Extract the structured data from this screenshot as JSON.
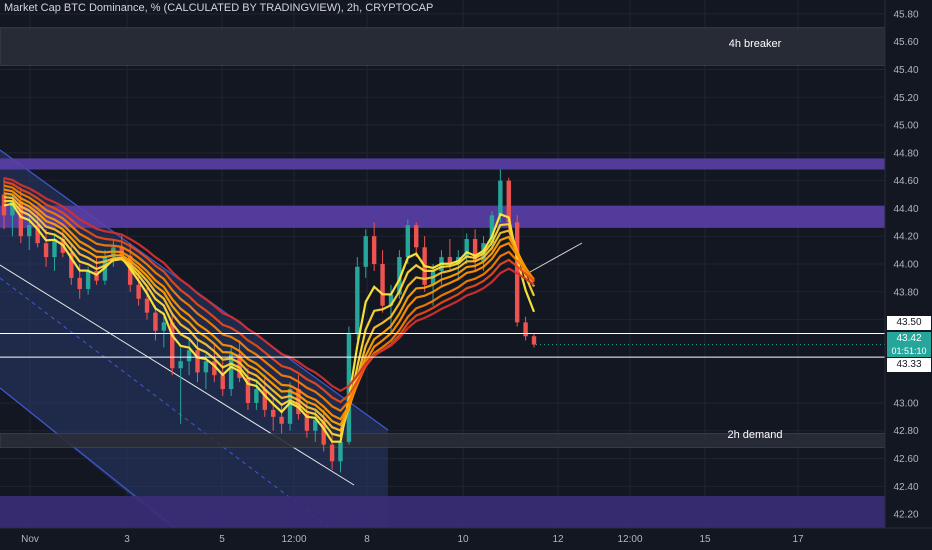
{
  "title": "Market Cap BTC Dominance, % (CALCULATED BY TRADINGVIEW), 2h, CRYPTOCAP",
  "chart_data": {
    "type": "candlestick",
    "y_ticks": [
      "45.80",
      "45.60",
      "45.40",
      "45.20",
      "45.00",
      "44.80",
      "44.60",
      "44.40",
      "44.20",
      "44.00",
      "43.80",
      "43.60",
      "43.00",
      "42.80",
      "42.60",
      "42.40",
      "42.20"
    ],
    "x_ticks": [
      {
        "label": "Nov",
        "px": 30
      },
      {
        "label": "3",
        "px": 127
      },
      {
        "label": "5",
        "px": 222
      },
      {
        "label": "12:00",
        "px": 294
      },
      {
        "label": "8",
        "px": 367
      },
      {
        "label": "10",
        "px": 463
      },
      {
        "label": "12",
        "px": 558
      },
      {
        "label": "12:00",
        "px": 630
      },
      {
        "label": "15",
        "px": 705
      },
      {
        "label": "17",
        "px": 798
      }
    ],
    "ylim": [
      42.1,
      45.9
    ],
    "zones": [
      {
        "name": "4h breaker",
        "from": 45.43,
        "to": 45.7,
        "color": "#2a2e39"
      },
      {
        "name": "",
        "from": 44.68,
        "to": 44.76,
        "color": "#5b3fa8"
      },
      {
        "name": "",
        "from": 44.26,
        "to": 44.42,
        "color": "#5b3fa8"
      },
      {
        "name": "2h demand",
        "from": 42.68,
        "to": 42.78,
        "color": "#2a2e39"
      },
      {
        "name": "",
        "from": 42.1,
        "to": 42.33,
        "color": "#3b2d78"
      }
    ],
    "levels": [
      {
        "label": "43.50",
        "value": 43.5
      },
      {
        "label": "43.33",
        "value": 43.33
      }
    ],
    "last_price": {
      "label": "43.42",
      "value": 43.42,
      "timer": "01:51:10",
      "color": "#26a69a"
    },
    "ohlc": [
      [
        44.5,
        44.62,
        44.25,
        44.35
      ],
      [
        44.35,
        44.5,
        44.2,
        44.45
      ],
      [
        44.45,
        44.55,
        44.15,
        44.2
      ],
      [
        44.2,
        44.35,
        44.1,
        44.28
      ],
      [
        44.28,
        44.38,
        44.12,
        44.15
      ],
      [
        44.15,
        44.25,
        43.98,
        44.05
      ],
      [
        44.05,
        44.22,
        43.95,
        44.18
      ],
      [
        44.18,
        44.25,
        44.05,
        44.08
      ],
      [
        44.08,
        44.15,
        43.85,
        43.9
      ],
      [
        43.9,
        44.0,
        43.75,
        43.82
      ],
      [
        43.82,
        43.98,
        43.78,
        43.95
      ],
      [
        43.95,
        44.05,
        43.85,
        43.88
      ],
      [
        43.88,
        44.1,
        43.85,
        44.05
      ],
      [
        44.05,
        44.18,
        43.98,
        44.12
      ],
      [
        44.12,
        44.22,
        44.02,
        44.06
      ],
      [
        44.06,
        44.15,
        43.8,
        43.85
      ],
      [
        43.85,
        43.95,
        43.7,
        43.75
      ],
      [
        43.75,
        43.85,
        43.6,
        43.65
      ],
      [
        43.65,
        43.7,
        43.45,
        43.52
      ],
      [
        43.52,
        43.62,
        43.4,
        43.58
      ],
      [
        43.58,
        43.65,
        43.2,
        43.25
      ],
      [
        43.25,
        43.4,
        42.85,
        43.3
      ],
      [
        43.3,
        43.45,
        43.2,
        43.38
      ],
      [
        43.38,
        43.45,
        43.15,
        43.22
      ],
      [
        43.22,
        43.35,
        43.1,
        43.3
      ],
      [
        43.3,
        43.42,
        43.15,
        43.2
      ],
      [
        43.2,
        43.3,
        43.05,
        43.1
      ],
      [
        43.1,
        43.4,
        43.05,
        43.35
      ],
      [
        43.35,
        43.45,
        43.15,
        43.18
      ],
      [
        43.18,
        43.25,
        42.95,
        43.0
      ],
      [
        43.0,
        43.15,
        42.95,
        43.1
      ],
      [
        43.1,
        43.2,
        42.9,
        42.95
      ],
      [
        42.95,
        43.05,
        42.8,
        42.9
      ],
      [
        42.9,
        43.0,
        42.78,
        42.85
      ],
      [
        42.85,
        43.15,
        42.8,
        43.1
      ],
      [
        43.1,
        43.2,
        42.88,
        42.92
      ],
      [
        42.92,
        43.0,
        42.75,
        42.8
      ],
      [
        42.8,
        42.95,
        42.72,
        42.88
      ],
      [
        42.88,
        42.95,
        42.65,
        42.7
      ],
      [
        42.7,
        42.78,
        42.52,
        42.58
      ],
      [
        42.58,
        42.75,
        42.5,
        42.72
      ],
      [
        42.72,
        43.55,
        42.7,
        43.5
      ],
      [
        43.5,
        44.05,
        43.45,
        43.98
      ],
      [
        43.98,
        44.25,
        43.9,
        44.2
      ],
      [
        44.2,
        44.3,
        43.95,
        44.0
      ],
      [
        44.0,
        44.1,
        43.65,
        43.7
      ],
      [
        43.7,
        43.85,
        43.5,
        43.78
      ],
      [
        43.78,
        44.1,
        43.75,
        44.05
      ],
      [
        44.05,
        44.32,
        44.0,
        44.28
      ],
      [
        44.28,
        44.3,
        44.05,
        44.12
      ],
      [
        44.12,
        44.2,
        43.8,
        43.85
      ],
      [
        43.85,
        44.0,
        43.7,
        43.95
      ],
      [
        43.95,
        44.1,
        43.85,
        44.05
      ],
      [
        44.05,
        44.18,
        43.95,
        44.0
      ],
      [
        44.0,
        44.1,
        43.88,
        44.05
      ],
      [
        44.05,
        44.22,
        44.0,
        44.18
      ],
      [
        44.18,
        44.25,
        43.95,
        44.02
      ],
      [
        44.02,
        44.2,
        43.95,
        44.15
      ],
      [
        44.15,
        44.38,
        44.1,
        44.35
      ],
      [
        44.35,
        44.68,
        44.3,
        44.6
      ],
      [
        44.6,
        44.62,
        44.25,
        44.3
      ],
      [
        44.3,
        44.35,
        43.55,
        43.58
      ],
      [
        43.58,
        43.62,
        43.45,
        43.48
      ],
      [
        43.48,
        43.5,
        43.4,
        43.42
      ]
    ]
  }
}
